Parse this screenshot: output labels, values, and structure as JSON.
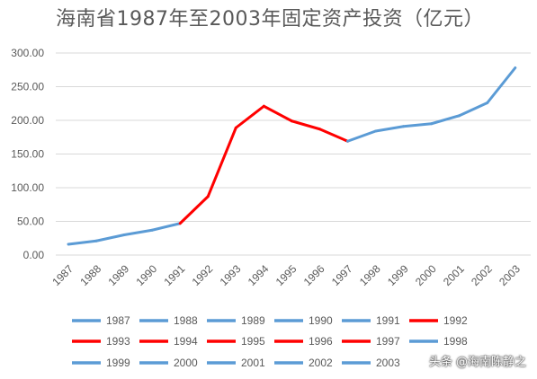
{
  "chart_data": {
    "type": "line",
    "title": "海南省1987年至2003年固定资产投资（亿元）",
    "xlabel": "",
    "ylabel": "",
    "categories": [
      "1987",
      "1988",
      "1989",
      "1990",
      "1991",
      "1992",
      "1993",
      "1994",
      "1995",
      "1996",
      "1997",
      "1998",
      "1999",
      "2000",
      "2001",
      "2002",
      "2003"
    ],
    "values": [
      16,
      21,
      30,
      37,
      47,
      87,
      189,
      221,
      199,
      187,
      169,
      184,
      191,
      195,
      207,
      226,
      278
    ],
    "segment_colors": [
      "#5B9BD5",
      "#5B9BD5",
      "#5B9BD5",
      "#5B9BD5",
      "#FF0000",
      "#FF0000",
      "#FF0000",
      "#FF0000",
      "#FF0000",
      "#FF0000",
      "#5B9BD5",
      "#5B9BD5",
      "#5B9BD5",
      "#5B9BD5",
      "#5B9BD5",
      "#5B9BD5",
      "#5B9BD5"
    ],
    "ylim": [
      0,
      300
    ],
    "yticks": [
      "0.00",
      "50.00",
      "100.00",
      "150.00",
      "200.00",
      "250.00",
      "300.00"
    ],
    "grid": true,
    "legend_position": "bottom",
    "legend": [
      {
        "name": "1987",
        "color": "#5B9BD5"
      },
      {
        "name": "1988",
        "color": "#5B9BD5"
      },
      {
        "name": "1989",
        "color": "#5B9BD5"
      },
      {
        "name": "1990",
        "color": "#5B9BD5"
      },
      {
        "name": "1991",
        "color": "#5B9BD5"
      },
      {
        "name": "1992",
        "color": "#FF0000"
      },
      {
        "name": "1993",
        "color": "#FF0000"
      },
      {
        "name": "1994",
        "color": "#FF0000"
      },
      {
        "name": "1995",
        "color": "#FF0000"
      },
      {
        "name": "1996",
        "color": "#FF0000"
      },
      {
        "name": "1997",
        "color": "#FF0000"
      },
      {
        "name": "1998",
        "color": "#5B9BD5"
      },
      {
        "name": "1999",
        "color": "#5B9BD5"
      },
      {
        "name": "2000",
        "color": "#5B9BD5"
      },
      {
        "name": "2001",
        "color": "#5B9BD5"
      },
      {
        "name": "2002",
        "color": "#5B9BD5"
      },
      {
        "name": "2003",
        "color": "#5B9BD5"
      }
    ]
  },
  "colors": {
    "blue": "#5B9BD5",
    "red": "#FF0000",
    "grid": "#D9D9D9",
    "text": "#595959"
  },
  "watermark": "头条 @海南陈静之"
}
